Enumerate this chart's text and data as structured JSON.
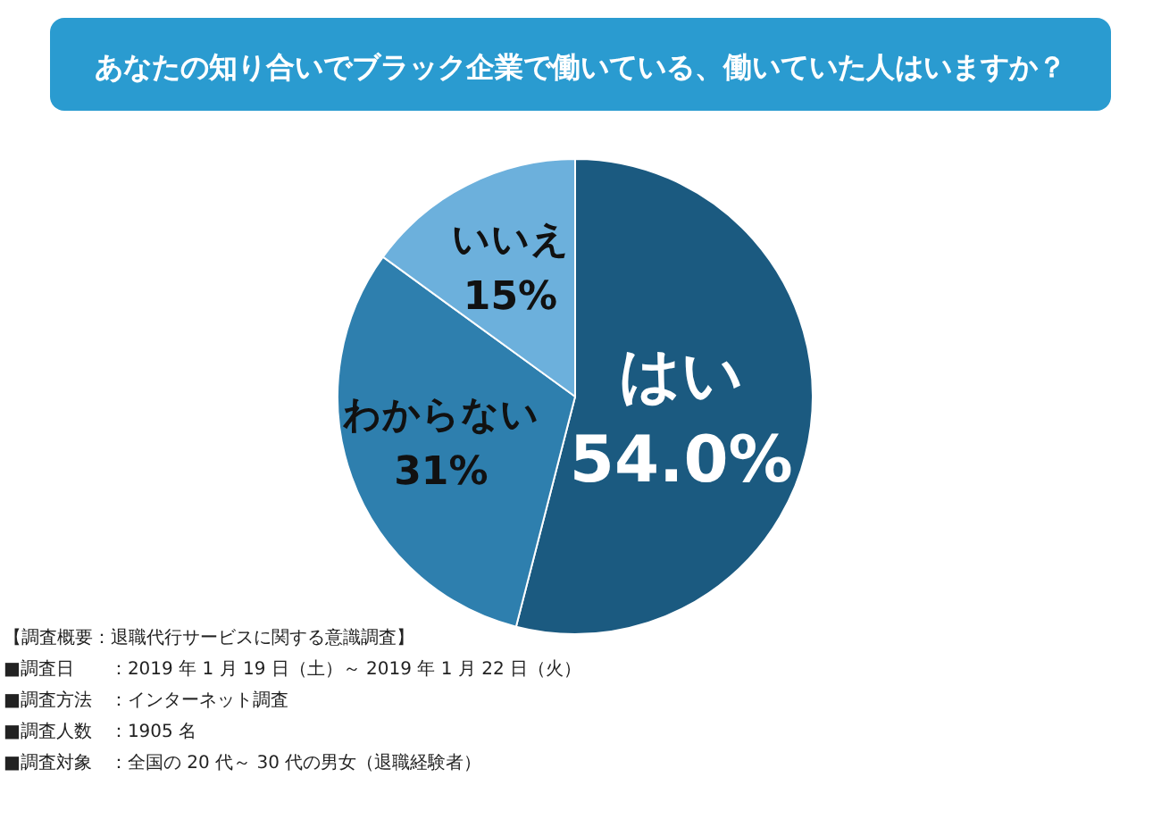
{
  "chart_data": {
    "type": "pie",
    "title": "あなたの知り合いでブラック企業で働いている、働いていた人はいますか？",
    "categories": [
      "はい",
      "わからない",
      "いいえ"
    ],
    "values": [
      54.0,
      31,
      15
    ],
    "value_labels": [
      "54.0%",
      "31%",
      "15%"
    ],
    "colors": [
      "#1b5a80",
      "#2e7fae",
      "#6cb0dc"
    ],
    "annotations": [
      "【調査概要：退職代行サービスに関する意識調査】",
      "■調査日　　：2019 年 1 月 19 日（土）～ 2019 年 1 月 22 日（火）",
      "■調査方法　：インターネット調査",
      "■調査人数　：1905 名",
      "■調査対象　：全国の 20 代～ 30 代の男女（退職経験者）"
    ]
  }
}
